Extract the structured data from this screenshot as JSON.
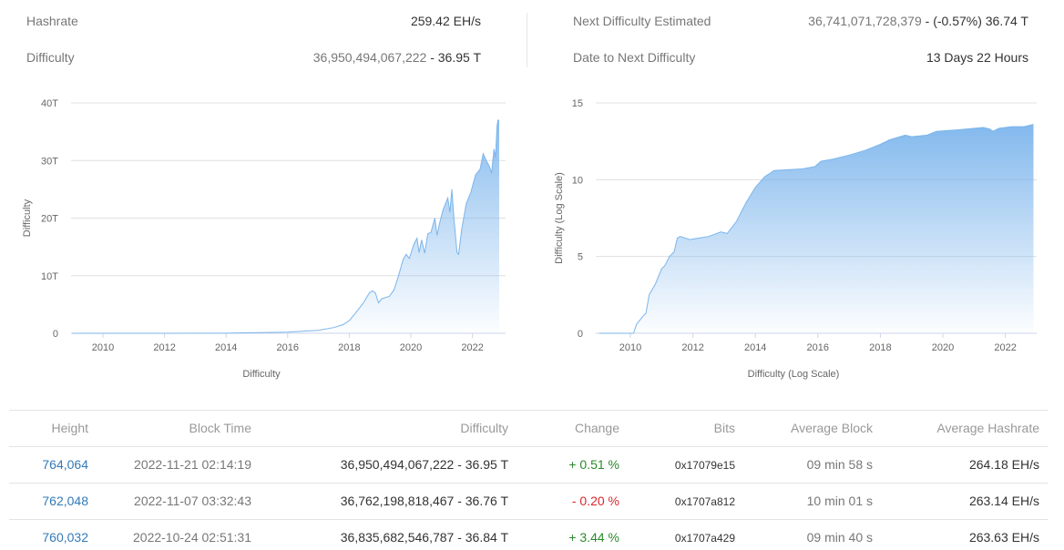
{
  "stats": {
    "hashrate_label": "Hashrate",
    "hashrate_value": "259.42 EH/s",
    "difficulty_label": "Difficulty",
    "difficulty_value_full": "36,950,494,067,222",
    "difficulty_value_short": " - 36.95 T",
    "next_label": "Next Difficulty Estimated",
    "next_value_full": "36,741,071,728,379",
    "next_value_short": " - (-0.57%) 36.74 T",
    "date_label": "Date to Next Difficulty",
    "date_value": "13 Days 22 Hours"
  },
  "chart_data": [
    {
      "type": "area",
      "ylabel": "Difficulty",
      "xlabel": "Difficulty",
      "ylim": [
        0,
        40
      ],
      "yticks": [
        {
          "v": 0,
          "label": "0"
        },
        {
          "v": 10,
          "label": "10T"
        },
        {
          "v": 20,
          "label": "20T"
        },
        {
          "v": 30,
          "label": "30T"
        },
        {
          "v": 40,
          "label": "40T"
        }
      ],
      "xticks": [
        "2010",
        "2012",
        "2014",
        "2016",
        "2018",
        "2020",
        "2022"
      ],
      "grid": true,
      "color": "#7cb5ec",
      "unit": "T",
      "points": [
        [
          2009,
          0
        ],
        [
          2012,
          0
        ],
        [
          2014,
          0.02
        ],
        [
          2016,
          0.2
        ],
        [
          2017,
          0.5
        ],
        [
          2017.5,
          1
        ],
        [
          2017.8,
          1.5
        ],
        [
          2018,
          2.2
        ],
        [
          2018.2,
          3.5
        ],
        [
          2018.45,
          5.2
        ],
        [
          2018.65,
          7
        ],
        [
          2018.75,
          7.4
        ],
        [
          2018.85,
          7
        ],
        [
          2018.95,
          5.3
        ],
        [
          2019.05,
          6
        ],
        [
          2019.3,
          6.4
        ],
        [
          2019.45,
          7.5
        ],
        [
          2019.6,
          10
        ],
        [
          2019.75,
          12.8
        ],
        [
          2019.85,
          13.7
        ],
        [
          2019.95,
          13
        ],
        [
          2020.1,
          15.5
        ],
        [
          2020.2,
          16.5
        ],
        [
          2020.27,
          14
        ],
        [
          2020.35,
          16.2
        ],
        [
          2020.45,
          13.9
        ],
        [
          2020.55,
          17.3
        ],
        [
          2020.65,
          17.5
        ],
        [
          2020.78,
          20
        ],
        [
          2020.85,
          17
        ],
        [
          2020.95,
          19.5
        ],
        [
          2021.05,
          21.5
        ],
        [
          2021.2,
          23.5
        ],
        [
          2021.27,
          21
        ],
        [
          2021.33,
          25
        ],
        [
          2021.4,
          20
        ],
        [
          2021.5,
          14
        ],
        [
          2021.55,
          13.7
        ],
        [
          2021.65,
          18
        ],
        [
          2021.8,
          22.5
        ],
        [
          2021.95,
          24.5
        ],
        [
          2022.1,
          27.5
        ],
        [
          2022.25,
          28.5
        ],
        [
          2022.35,
          31.2
        ],
        [
          2022.45,
          30
        ],
        [
          2022.55,
          29
        ],
        [
          2022.62,
          27.8
        ],
        [
          2022.7,
          32
        ],
        [
          2022.75,
          30.5
        ],
        [
          2022.8,
          36
        ],
        [
          2022.83,
          37
        ],
        [
          2022.87,
          37
        ]
      ]
    },
    {
      "type": "area",
      "ylabel": "Difficulty (Log Scale)",
      "xlabel": "Difficulty (Log Scale)",
      "ylim": [
        0,
        15
      ],
      "yticks": [
        {
          "v": 0,
          "label": "0"
        },
        {
          "v": 5,
          "label": "5"
        },
        {
          "v": 10,
          "label": "10"
        },
        {
          "v": 15,
          "label": "15"
        }
      ],
      "xticks": [
        "2010",
        "2012",
        "2014",
        "2016",
        "2018",
        "2020",
        "2022"
      ],
      "grid": true,
      "color": "#7cb5ec",
      "points": [
        [
          2009,
          0
        ],
        [
          2010.1,
          0
        ],
        [
          2010.2,
          0.6
        ],
        [
          2010.4,
          1.1
        ],
        [
          2010.5,
          1.3
        ],
        [
          2010.6,
          2.5
        ],
        [
          2010.8,
          3.2
        ],
        [
          2011,
          4.2
        ],
        [
          2011.1,
          4.4
        ],
        [
          2011.25,
          5
        ],
        [
          2011.4,
          5.3
        ],
        [
          2011.5,
          6.2
        ],
        [
          2011.6,
          6.3
        ],
        [
          2011.9,
          6.1
        ],
        [
          2012.5,
          6.3
        ],
        [
          2012.9,
          6.6
        ],
        [
          2013.1,
          6.5
        ],
        [
          2013.4,
          7.3
        ],
        [
          2013.7,
          8.5
        ],
        [
          2014,
          9.5
        ],
        [
          2014.3,
          10.2
        ],
        [
          2014.6,
          10.6
        ],
        [
          2015.5,
          10.7
        ],
        [
          2015.9,
          10.85
        ],
        [
          2016.1,
          11.2
        ],
        [
          2016.5,
          11.35
        ],
        [
          2017,
          11.6
        ],
        [
          2017.5,
          11.9
        ],
        [
          2018,
          12.3
        ],
        [
          2018.3,
          12.6
        ],
        [
          2018.8,
          12.9
        ],
        [
          2019,
          12.8
        ],
        [
          2019.5,
          12.9
        ],
        [
          2019.8,
          13.15
        ],
        [
          2020.5,
          13.25
        ],
        [
          2021.3,
          13.4
        ],
        [
          2021.5,
          13.3
        ],
        [
          2021.6,
          13.15
        ],
        [
          2021.8,
          13.35
        ],
        [
          2022.2,
          13.45
        ],
        [
          2022.6,
          13.45
        ],
        [
          2022.9,
          13.6
        ]
      ]
    }
  ],
  "table": {
    "headers": [
      "Height",
      "Block Time",
      "Difficulty",
      "Change",
      "Bits",
      "Average Block",
      "Average Hashrate"
    ],
    "rows": [
      {
        "height": "764,064",
        "time": "2022-11-21 02:14:19",
        "difficulty": "36,950,494,067,222 - 36.95 T",
        "change": "+ 0.51 %",
        "change_dir": "up",
        "bits": "0x17079e15",
        "avg_block": "09 min 58 s",
        "avg_hashrate": "264.18 EH/s"
      },
      {
        "height": "762,048",
        "time": "2022-11-07 03:32:43",
        "difficulty": "36,762,198,818,467 - 36.76 T",
        "change": "- 0.20 %",
        "change_dir": "down",
        "bits": "0x1707a812",
        "avg_block": "10 min 01 s",
        "avg_hashrate": "263.14 EH/s"
      },
      {
        "height": "760,032",
        "time": "2022-10-24 02:51:31",
        "difficulty": "36,835,682,546,787 - 36.84 T",
        "change": "+ 3.44 %",
        "change_dir": "up",
        "bits": "0x1707a429",
        "avg_block": "09 min 40 s",
        "avg_hashrate": "263.63 EH/s"
      }
    ]
  }
}
